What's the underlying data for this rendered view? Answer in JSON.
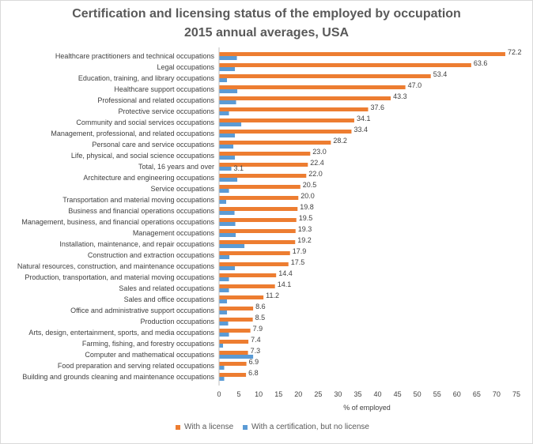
{
  "chart_data": {
    "type": "bar",
    "orientation": "horizontal",
    "title": "Certification and licensing status of the employed by occupation",
    "subtitle": "2015 annual averages, USA",
    "xlabel": "% of employed",
    "ylabel": "",
    "xlim": [
      0,
      75
    ],
    "xticks": [
      0,
      5,
      10,
      15,
      20,
      25,
      30,
      35,
      40,
      45,
      50,
      55,
      60,
      65,
      70,
      75
    ],
    "grid": false,
    "legend_position": "bottom",
    "categories": [
      "Healthcare practitioners and technical occupations",
      "Legal occupations",
      "Education, training, and library occupations",
      "Healthcare support occupations",
      "Professional and related occupations",
      "Protective service occupations",
      "Community and social services occupations",
      "Management, professional, and related occupations",
      "Personal care and service occupations",
      "Life, physical, and social science occupations",
      "Total, 16 years and over",
      "Architecture and engineering occupations",
      "Service occupations",
      "Transportation and material moving occupations",
      "Business and financial operations occupations",
      "Management, business, and financial operations occupations",
      "Management occupations",
      "Installation, maintenance, and repair occupations",
      "Construction and extraction occupations",
      "Natural resources, construction, and maintenance occupations",
      "Production, transportation, and material moving occupations",
      "Sales and related occupations",
      "Sales and office occupations",
      "Office and administrative support occupations",
      "Production occupations",
      "Arts, design, entertainment, sports, and media occupations",
      "Farming, fishing, and forestry occupations",
      "Computer and mathematical occupations",
      "Food preparation and serving related occupations",
      "Building and grounds cleaning and maintenance occupations"
    ],
    "series": [
      {
        "name": "With a license",
        "color": "#ed7d31",
        "values": [
          72.2,
          63.6,
          53.4,
          47.0,
          43.3,
          37.6,
          34.1,
          33.4,
          28.2,
          23.0,
          22.4,
          22.0,
          20.5,
          20.0,
          19.8,
          19.5,
          19.3,
          19.2,
          17.9,
          17.5,
          14.4,
          14.1,
          11.2,
          8.6,
          8.5,
          7.9,
          7.4,
          7.3,
          6.9,
          6.8
        ],
        "labels": [
          "72.2",
          "63.6",
          "53.4",
          "47.0",
          "43.3",
          "37.6",
          "34.1",
          "33.4",
          "28.2",
          "23.0",
          "22.4",
          "22.0",
          "20.5",
          "20.0",
          "19.8",
          "19.5",
          "19.3",
          "19.2",
          "17.9",
          "17.5",
          "14.4",
          "14.1",
          "11.2",
          "8.6",
          "8.5",
          "7.9",
          "7.4",
          "7.3",
          "6.9",
          "6.8"
        ]
      },
      {
        "name": "With a certification, but no license",
        "color": "#5b9bd5",
        "values": [
          4.5,
          4.0,
          2.0,
          4.6,
          4.3,
          2.5,
          5.6,
          4.0,
          3.6,
          4.0,
          3.1,
          4.6,
          2.5,
          1.8,
          3.9,
          4.1,
          4.2,
          6.4,
          2.6,
          4.0,
          2.5,
          2.5,
          2.0,
          2.0,
          2.3,
          2.5,
          1.0,
          8.6,
          1.3,
          1.3
        ],
        "labels": [
          "",
          "",
          "",
          "",
          "",
          "",
          "",
          "",
          "",
          "",
          "3.1",
          "",
          "",
          "",
          "",
          "",
          "",
          "",
          "",
          "",
          "",
          "",
          "",
          "",
          "",
          "",
          "",
          "",
          "",
          ""
        ]
      }
    ]
  }
}
